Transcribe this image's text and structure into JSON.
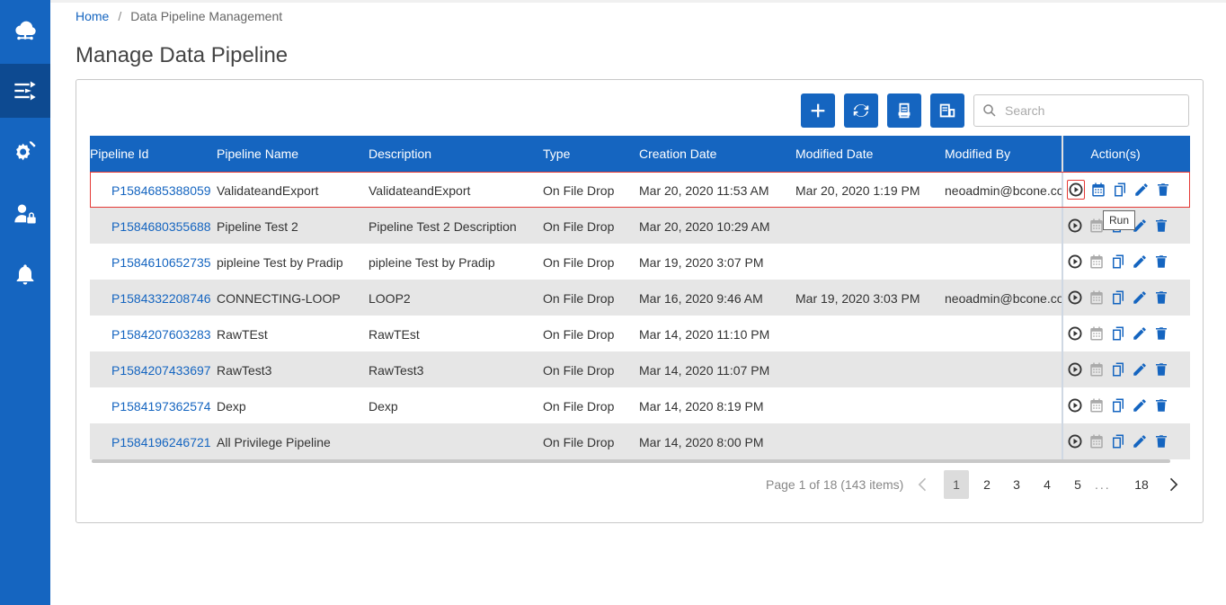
{
  "breadcrumb": {
    "home": "Home",
    "current": "Data Pipeline Management"
  },
  "page_title": "Manage Data Pipeline",
  "search": {
    "placeholder": "Search",
    "value": ""
  },
  "sidebar": {
    "items": [
      "cloud-icon",
      "pipeline-icon",
      "settings-tools-icon",
      "user-lock-icon",
      "bell-icon"
    ],
    "active_index": 1
  },
  "colors": {
    "primary": "#1565c0",
    "alt_row": "#e6e6e6",
    "selection": "#e53935"
  },
  "columns": [
    "Pipeline Id",
    "Pipeline Name",
    "Description",
    "Type",
    "Creation Date",
    "Modified Date",
    "Modified By",
    "Action(s)"
  ],
  "rows": [
    {
      "id": "P1584685388059",
      "name": "ValidateandExport",
      "desc": "ValidateandExport",
      "type": "On File Drop",
      "created": "Mar 20, 2020 11:53 AM",
      "modified": "Mar 20, 2020 1:19 PM",
      "by": "neoadmin@bcone.com"
    },
    {
      "id": "P1584680355688",
      "name": "Pipeline Test 2",
      "desc": "Pipeline Test 2 Description",
      "type": "On File Drop",
      "created": "Mar 20, 2020 10:29 AM",
      "modified": "",
      "by": ""
    },
    {
      "id": "P1584610652735",
      "name": "pipleine Test by Pradip",
      "desc": "pipleine Test by Pradip",
      "type": "On File Drop",
      "created": "Mar 19, 2020 3:07 PM",
      "modified": "",
      "by": ""
    },
    {
      "id": "P1584332208746",
      "name": "CONNECTING-LOOP",
      "desc": "LOOP2",
      "type": "On File Drop",
      "created": "Mar 16, 2020 9:46 AM",
      "modified": "Mar 19, 2020 3:03 PM",
      "by": "neoadmin@bcone.com"
    },
    {
      "id": "P1584207603283",
      "name": "RawTEst",
      "desc": "RawTEst",
      "type": "On File Drop",
      "created": "Mar 14, 2020 11:10 PM",
      "modified": "",
      "by": ""
    },
    {
      "id": "P1584207433697",
      "name": "RawTest3",
      "desc": "RawTest3",
      "type": "On File Drop",
      "created": "Mar 14, 2020 11:07 PM",
      "modified": "",
      "by": ""
    },
    {
      "id": "P1584197362574",
      "name": "Dexp",
      "desc": "Dexp",
      "type": "On File Drop",
      "created": "Mar 14, 2020 8:19 PM",
      "modified": "",
      "by": ""
    },
    {
      "id": "P1584196246721",
      "name": "All Privilege Pipeline",
      "desc": "",
      "type": "On File Drop",
      "created": "Mar 14, 2020 8:00 PM",
      "modified": "",
      "by": ""
    }
  ],
  "tooltip": "Run",
  "pager": {
    "info": "Page 1 of 18 (143 items)",
    "pages": [
      "1",
      "2",
      "3",
      "4",
      "5"
    ],
    "ellipsis": "...",
    "last": "18",
    "current": "1"
  }
}
